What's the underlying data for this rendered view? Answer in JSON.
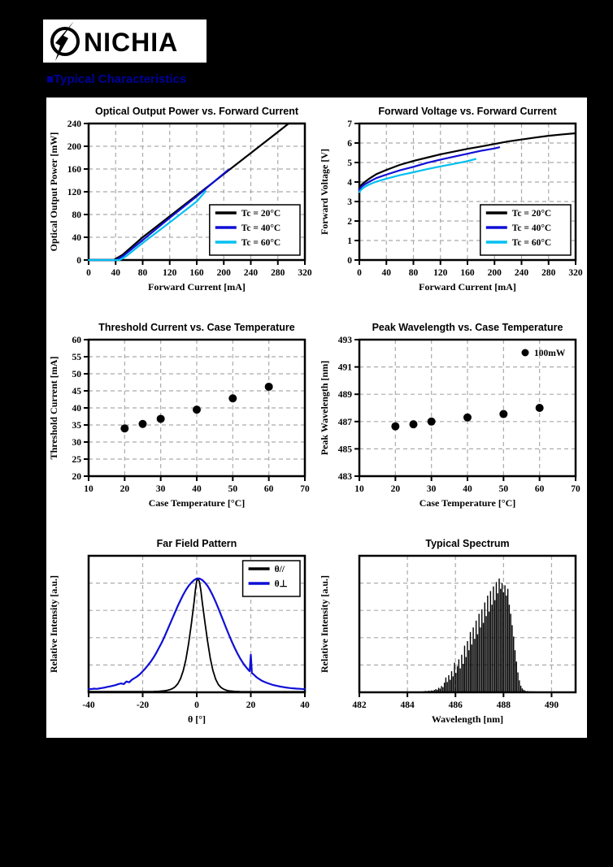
{
  "page": {
    "background": "#000000",
    "panel_background": "#ffffff"
  },
  "logo": {
    "text": "NICHIA"
  },
  "heading": {
    "text": "■Typical Characteristics",
    "color": "#000099"
  },
  "colors": {
    "black": "#000000",
    "blue": "#0f0fd6",
    "cyan": "#00c0f0",
    "grid": "#aaaaaa",
    "navy": "#000099"
  },
  "chart_data": [
    {
      "type": "line",
      "title": "Optical Output Power vs. Forward Current",
      "xlabel": "Forward Current [mA]",
      "ylabel": "Optical Output Power [mW]",
      "xlim": [
        0,
        320
      ],
      "ylim": [
        0,
        240
      ],
      "xticks": [
        0,
        40,
        80,
        120,
        160,
        200,
        240,
        280,
        320
      ],
      "yticks": [
        0,
        40,
        80,
        120,
        160,
        200,
        240
      ],
      "legend": {
        "anchor": "br",
        "box": true,
        "items": [
          {
            "label": "Tc = 20°C",
            "marker": "line",
            "color": "#000000"
          },
          {
            "label": "Tc = 40°C",
            "marker": "line",
            "color": "#0f0fd6"
          },
          {
            "label": "Tc = 60°C",
            "marker": "line",
            "color": "#00c0f0"
          }
        ]
      },
      "series": [
        {
          "name": "Tc = 20°C",
          "color": "#000000",
          "width": 2.2,
          "x": [
            0,
            37,
            50,
            80,
            120,
            160,
            200,
            240,
            280,
            296,
            320
          ],
          "y": [
            0,
            0,
            9,
            40,
            77,
            114,
            151,
            188,
            225,
            240,
            240
          ]
        },
        {
          "name": "Tc = 40°C",
          "color": "#0f0fd6",
          "width": 2.2,
          "x": [
            0,
            41,
            52,
            80,
            120,
            160,
            207
          ],
          "y": [
            0,
            0,
            8,
            35,
            74,
            112,
            159
          ]
        },
        {
          "name": "Tc = 60°C",
          "color": "#00c0f0",
          "width": 2.2,
          "x": [
            0,
            46,
            57,
            80,
            120,
            160,
            173
          ],
          "y": [
            0,
            0,
            8,
            30,
            66,
            103,
            121
          ]
        }
      ]
    },
    {
      "type": "line",
      "title": "Forward Voltage vs. Forward Current",
      "xlabel": "Forward Current [mA]",
      "ylabel": "Forward Voltage [V]",
      "xlim": [
        0,
        320
      ],
      "ylim": [
        0,
        7
      ],
      "xticks": [
        0,
        40,
        80,
        120,
        160,
        200,
        240,
        280,
        320
      ],
      "yticks": [
        0,
        1,
        2,
        3,
        4,
        5,
        6,
        7
      ],
      "legend": {
        "anchor": "br",
        "box": true,
        "items": [
          {
            "label": "Tc = 20°C",
            "marker": "line",
            "color": "#000000"
          },
          {
            "label": "Tc = 40°C",
            "marker": "line",
            "color": "#0f0fd6"
          },
          {
            "label": "Tc = 60°C",
            "marker": "line",
            "color": "#00c0f0"
          }
        ]
      },
      "series": [
        {
          "name": "Tc = 20°C",
          "color": "#000000",
          "width": 2.2,
          "x": [
            0,
            3,
            8,
            15,
            25,
            40,
            60,
            80,
            100,
            120,
            140,
            160,
            180,
            200,
            220,
            240,
            260,
            280,
            300,
            320
          ],
          "y": [
            3.65,
            3.85,
            4.0,
            4.18,
            4.4,
            4.62,
            4.88,
            5.08,
            5.25,
            5.42,
            5.56,
            5.7,
            5.82,
            5.95,
            6.08,
            6.18,
            6.28,
            6.37,
            6.44,
            6.5
          ]
        },
        {
          "name": "Tc = 40°C",
          "color": "#0f0fd6",
          "width": 2.2,
          "x": [
            0,
            3,
            8,
            15,
            25,
            40,
            60,
            80,
            100,
            120,
            140,
            160,
            180,
            200,
            207
          ],
          "y": [
            3.58,
            3.75,
            3.88,
            4.02,
            4.2,
            4.38,
            4.6,
            4.78,
            4.98,
            5.15,
            5.3,
            5.45,
            5.6,
            5.72,
            5.78
          ]
        },
        {
          "name": "Tc = 60°C",
          "color": "#00c0f0",
          "width": 2.2,
          "x": [
            0,
            3,
            8,
            15,
            25,
            40,
            60,
            80,
            100,
            120,
            140,
            160,
            172
          ],
          "y": [
            3.48,
            3.62,
            3.75,
            3.88,
            4.02,
            4.17,
            4.35,
            4.5,
            4.66,
            4.8,
            4.93,
            5.07,
            5.18
          ]
        }
      ]
    },
    {
      "type": "scatter",
      "title": "Threshold Current vs. Case Temperature",
      "xlabel": "Case Temperature [°C]",
      "ylabel": "Threshold Current [mA]",
      "xlim": [
        10,
        70
      ],
      "ylim": [
        20,
        60
      ],
      "xticks": [
        10,
        20,
        30,
        40,
        50,
        60,
        70
      ],
      "yticks": [
        20,
        25,
        30,
        35,
        40,
        45,
        50,
        55,
        60
      ],
      "points": {
        "color": "#000000",
        "r": 5,
        "x": [
          20,
          25,
          30,
          40,
          50,
          60
        ],
        "y": [
          34.0,
          35.3,
          36.8,
          39.5,
          42.8,
          46.2
        ]
      }
    },
    {
      "type": "scatter",
      "title": "Peak Wavelength vs. Case Temperature",
      "xlabel": "Case Temperature [°C]",
      "ylabel": "Peak Wavelength [nm]",
      "xlim": [
        10,
        70
      ],
      "ylim": [
        483,
        493
      ],
      "xticks": [
        10,
        20,
        30,
        40,
        50,
        60,
        70
      ],
      "yticks": [
        483,
        485,
        487,
        489,
        491,
        493
      ],
      "legend": {
        "anchor": "tr",
        "box": false,
        "items": [
          {
            "label": "100mW",
            "marker": "dot",
            "color": "#000000"
          }
        ]
      },
      "points": {
        "color": "#000000",
        "r": 5,
        "x": [
          20,
          25,
          30,
          40,
          50,
          60
        ],
        "y": [
          486.65,
          486.8,
          487.0,
          487.3,
          487.55,
          488.0
        ]
      }
    },
    {
      "type": "line",
      "title": "Far Field Pattern",
      "xlabel": "θ [°]",
      "ylabel": "Relative Intensity [a.u.]",
      "xlim": [
        -40,
        40
      ],
      "ylim": [
        0,
        1.2
      ],
      "xticks": [
        -40,
        -20,
        0,
        20,
        40
      ],
      "yticks": [],
      "ygrid": [
        0.24,
        0.48,
        0.72,
        0.96
      ],
      "legend": {
        "anchor": "tr",
        "box": true,
        "items": [
          {
            "label": "θ//",
            "marker": "line",
            "color": "#000000"
          },
          {
            "label": "θ⊥",
            "marker": "line",
            "color": "#0f0fd6"
          }
        ]
      },
      "series": [
        {
          "name": "θ//",
          "color": "#000000",
          "width": 1.8,
          "x": [
            -40,
            -20,
            -16,
            -14,
            -12,
            -11,
            -10,
            -9,
            -8,
            -7,
            -6,
            -5,
            -4,
            -3,
            -2,
            -1,
            -0.5,
            0,
            0.5,
            1,
            1.5,
            2,
            3,
            4,
            5,
            6,
            7,
            8,
            9,
            10,
            11,
            12,
            14,
            16,
            20,
            40
          ],
          "y": [
            0.006,
            0.006,
            0.007,
            0.009,
            0.013,
            0.017,
            0.023,
            0.032,
            0.048,
            0.075,
            0.12,
            0.19,
            0.29,
            0.43,
            0.6,
            0.79,
            0.9,
            0.98,
            1.0,
            0.97,
            0.9,
            0.8,
            0.62,
            0.45,
            0.3,
            0.19,
            0.115,
            0.068,
            0.042,
            0.027,
            0.018,
            0.012,
            0.008,
            0.006,
            0.005,
            0.005
          ]
        },
        {
          "name": "θ⊥",
          "color": "#0f0fd6",
          "width": 2.2,
          "x": [
            -40,
            -39,
            -38,
            -37,
            -36,
            -35,
            -34,
            -33,
            -32,
            -31,
            -30,
            -29,
            -28,
            -27,
            -26,
            -25,
            -24,
            -23,
            -22,
            -21,
            -20,
            -19,
            -18,
            -17,
            -16,
            -15,
            -14,
            -13,
            -12,
            -11,
            -10,
            -9,
            -8,
            -7,
            -6,
            -5,
            -4,
            -3,
            -2,
            -1,
            0,
            1,
            2,
            3,
            4,
            5,
            6,
            7,
            8,
            9,
            10,
            11,
            12,
            13,
            14,
            15,
            16,
            17,
            18,
            19,
            19.6,
            20,
            20.4,
            21,
            22,
            23,
            24,
            25,
            26,
            27,
            28,
            29,
            30,
            31,
            32,
            33,
            34,
            35,
            36,
            37,
            38,
            39,
            40
          ],
          "y": [
            0.03,
            0.028,
            0.032,
            0.03,
            0.034,
            0.038,
            0.042,
            0.048,
            0.052,
            0.058,
            0.064,
            0.072,
            0.078,
            0.072,
            0.095,
            0.088,
            0.11,
            0.125,
            0.14,
            0.16,
            0.185,
            0.21,
            0.24,
            0.27,
            0.305,
            0.345,
            0.39,
            0.435,
            0.485,
            0.54,
            0.595,
            0.65,
            0.705,
            0.76,
            0.81,
            0.858,
            0.9,
            0.936,
            0.964,
            0.986,
            1.0,
            1.0,
            0.988,
            0.965,
            0.935,
            0.895,
            0.848,
            0.795,
            0.738,
            0.678,
            0.618,
            0.558,
            0.5,
            0.444,
            0.392,
            0.344,
            0.3,
            0.262,
            0.228,
            0.2,
            0.185,
            0.33,
            0.17,
            0.158,
            0.135,
            0.118,
            0.103,
            0.092,
            0.082,
            0.074,
            0.066,
            0.06,
            0.055,
            0.05,
            0.046,
            0.042,
            0.039,
            0.036,
            0.034,
            0.032,
            0.031,
            0.029,
            0.028
          ]
        }
      ]
    },
    {
      "type": "bar",
      "title": "Typical Spectrum",
      "xlabel": "Wavelength [nm]",
      "ylabel": "Relative Intensity [a.u.]",
      "xlim": [
        482,
        491
      ],
      "ylim": [
        0,
        1.2
      ],
      "xticks": [
        482,
        484,
        486,
        488,
        490
      ],
      "yticks": [],
      "ygrid": [
        0.24,
        0.48,
        0.72,
        0.96
      ],
      "bars": {
        "color": "#000000",
        "width": 1.4,
        "x": [
          484.7,
          484.76,
          484.82,
          484.88,
          484.94,
          485.0,
          485.06,
          485.12,
          485.18,
          485.24,
          485.3,
          485.36,
          485.42,
          485.48,
          485.54,
          485.6,
          485.66,
          485.72,
          485.78,
          485.84,
          485.9,
          485.96,
          486.02,
          486.08,
          486.14,
          486.2,
          486.26,
          486.32,
          486.38,
          486.44,
          486.5,
          486.56,
          486.62,
          486.68,
          486.74,
          486.8,
          486.86,
          486.92,
          486.98,
          487.04,
          487.1,
          487.16,
          487.22,
          487.28,
          487.34,
          487.4,
          487.46,
          487.52,
          487.58,
          487.64,
          487.7,
          487.76,
          487.82,
          487.88,
          487.94,
          488.0,
          488.06,
          488.12,
          488.18,
          488.24,
          488.3,
          488.36,
          488.42,
          488.48,
          488.54,
          488.6,
          488.66,
          488.72,
          488.78,
          488.84,
          488.9,
          489.0,
          489.1,
          489.2,
          489.3
        ],
        "v": [
          0.01,
          0.012,
          0.01,
          0.014,
          0.012,
          0.016,
          0.014,
          0.02,
          0.028,
          0.022,
          0.04,
          0.032,
          0.055,
          0.045,
          0.085,
          0.13,
          0.09,
          0.15,
          0.11,
          0.185,
          0.14,
          0.26,
          0.17,
          0.23,
          0.29,
          0.21,
          0.33,
          0.25,
          0.41,
          0.31,
          0.45,
          0.37,
          0.53,
          0.42,
          0.57,
          0.47,
          0.63,
          0.51,
          0.69,
          0.57,
          0.73,
          0.61,
          0.79,
          0.67,
          0.85,
          0.71,
          0.89,
          0.77,
          0.93,
          0.81,
          0.97,
          0.87,
          1.0,
          0.91,
          0.96,
          0.88,
          0.94,
          0.85,
          0.91,
          0.77,
          0.69,
          0.59,
          0.49,
          0.37,
          0.27,
          0.175,
          0.105,
          0.058,
          0.034,
          0.022,
          0.015,
          0.012,
          0.01,
          0.009,
          0.008
        ]
      }
    }
  ]
}
